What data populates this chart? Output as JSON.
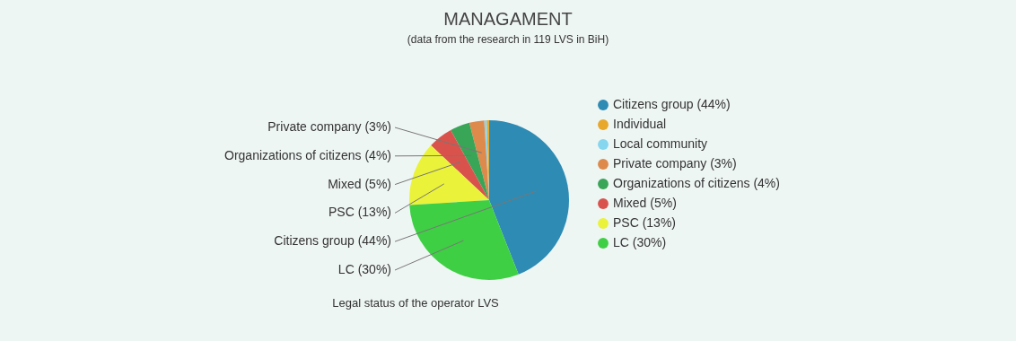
{
  "chart_data": {
    "type": "pie",
    "title": "MANAGAMENT",
    "subtitle": "(data from the research in 119 LVS in BiH)",
    "categories": [
      "Citizens group (44%)",
      "Individual",
      "Local community",
      "Private company (3%)",
      "Organizations of citizens (4%)",
      "Mixed (5%)",
      "PSC (13%)",
      "LC (30%)"
    ],
    "values": [
      44,
      0.5,
      0.5,
      3,
      4,
      5,
      13,
      30
    ],
    "colors": [
      "#2e8bb3",
      "#e8a82c",
      "#86d6ef",
      "#dd8a4c",
      "#39a557",
      "#d9534c",
      "#eaf23a",
      "#3fcf44"
    ],
    "value_labels": [
      "Citizens group (44%)",
      null,
      null,
      "Private company (3%)",
      "Organizations of citizens (4%)",
      "Mixed (5%)",
      "PSC (13%)",
      "LC (30%)"
    ],
    "annotations": [
      "Legal status of the operator LVS"
    ],
    "legend": "right"
  }
}
